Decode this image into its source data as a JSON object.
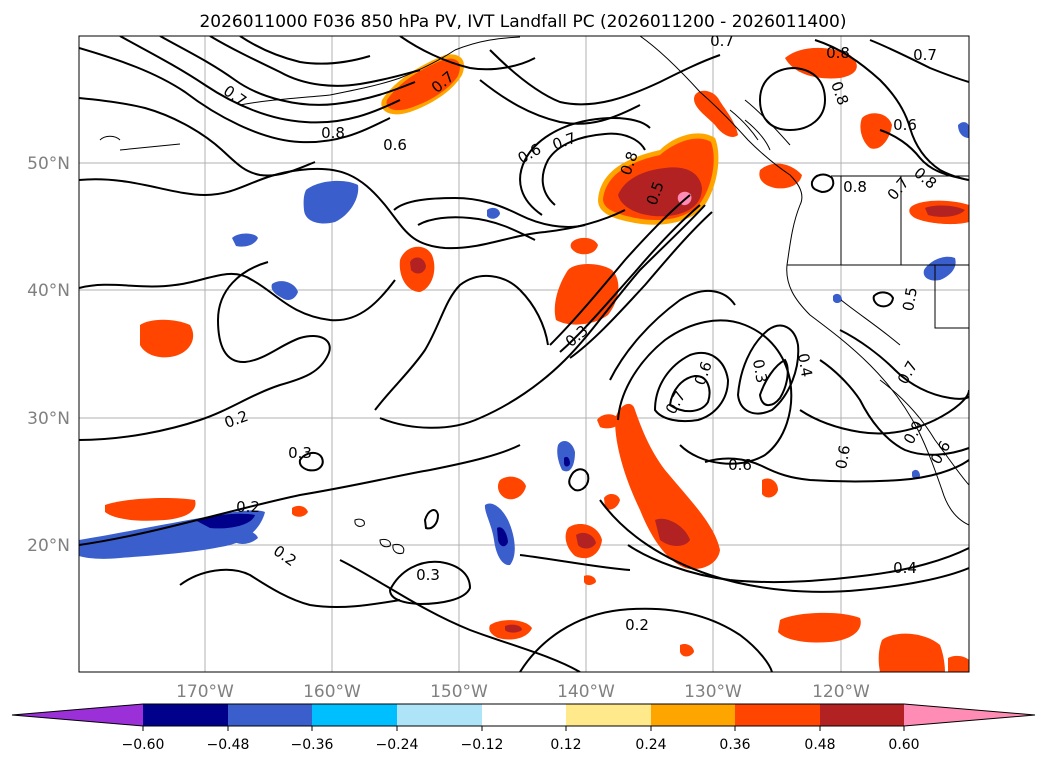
{
  "title": "2026011000 F036 850 hPa PV, IVT Landfall PC (2026011200 - 2026011400)",
  "colors": {
    "purple": "#9b30d9",
    "navy": "#00008b",
    "royal": "#3a5fcd",
    "sky": "#00bfff",
    "pale_blue": "#aee4f7",
    "white": "#ffffff",
    "pale_yellow": "#ffe98a",
    "orange": "#ffa500",
    "red_orange": "#ff4500",
    "firebrick": "#b22222",
    "pink": "#ff8cb4"
  },
  "axes": {
    "lat_labels": [
      "50°N",
      "40°N",
      "30°N",
      "20°N"
    ],
    "lon_labels": [
      "170°W",
      "160°W",
      "150°W",
      "140°W",
      "130°W",
      "120°W"
    ]
  },
  "colorbar": {
    "ticks": [
      "−0.60",
      "−0.48",
      "−0.36",
      "−0.24",
      "−0.12",
      "0.12",
      "0.24",
      "0.36",
      "0.48",
      "0.60"
    ]
  },
  "contour_labels": {
    "l1": "0.7",
    "l2": "0.8",
    "l3": "0.6",
    "l4": "0.7",
    "l5": "0.6",
    "l6": "0.7",
    "l7": "0.8",
    "l8": "0.5",
    "l9": "0.7",
    "l10": "0.6",
    "l11": "0.8",
    "l12": "0.8",
    "l13": "0.8",
    "l14": "0.7",
    "l15": "0.3",
    "l16": "0.2",
    "l17": "0.3",
    "l18": "0.2",
    "l19": "0.2",
    "l20": "0.3",
    "l21": "0.2",
    "l22": "0.7",
    "l23": "0.6",
    "l24": "0.3",
    "l25": "0.4",
    "l26": "0.6",
    "l27": "0.6",
    "l28": "0.4",
    "l29": "0.5",
    "l30": "0.7",
    "l31": "0.8",
    "l32": "0.6",
    "l33": "0.9",
    "l34": "0.7"
  }
}
